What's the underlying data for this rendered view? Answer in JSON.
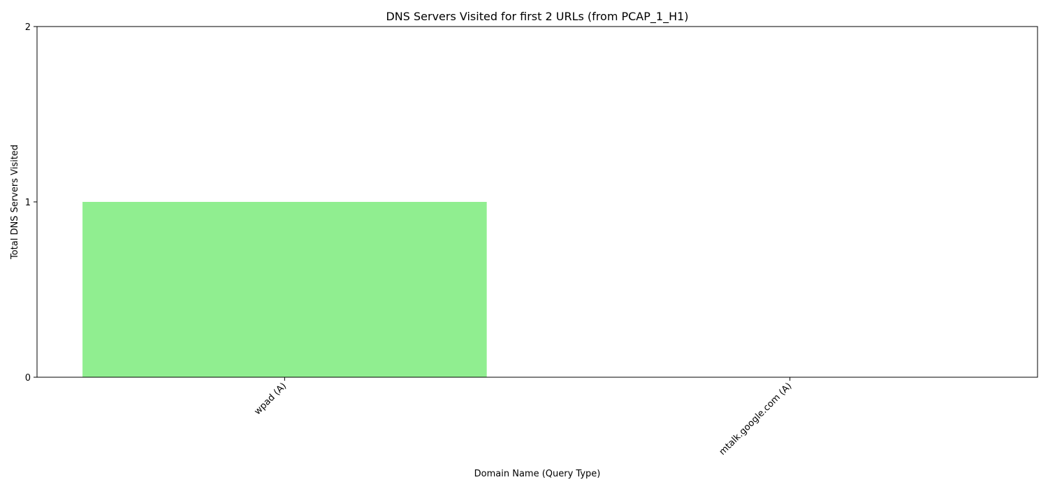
{
  "chart_data": {
    "type": "bar",
    "title": "DNS Servers Visited for first 2 URLs (from PCAP_1_H1)",
    "xlabel": "Domain Name (Query Type)",
    "ylabel": "Total DNS Servers Visited",
    "categories": [
      "wpad (A)",
      "mtalk.google.com (A)"
    ],
    "values": [
      1,
      0
    ],
    "ylim": [
      0,
      2
    ],
    "yticks": [
      0,
      1,
      2
    ],
    "bar_color": "#90ee90",
    "grid": false,
    "legend": "none"
  }
}
